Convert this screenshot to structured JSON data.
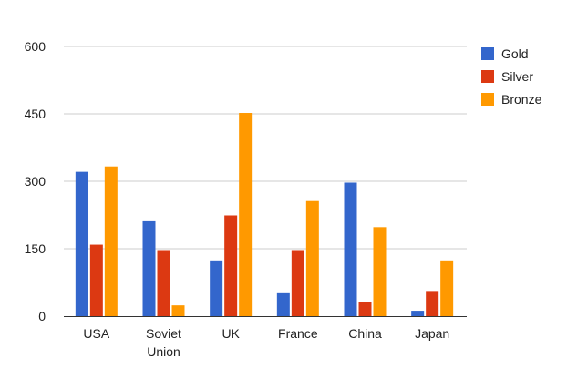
{
  "chart_data": {
    "type": "bar",
    "categories": [
      [
        "USA"
      ],
      [
        "Soviet",
        "Union"
      ],
      [
        "UK"
      ],
      [
        "France"
      ],
      [
        "China"
      ],
      [
        "Japan"
      ]
    ],
    "series": [
      {
        "name": "Gold",
        "color": "#3366cc",
        "values": [
          321,
          211,
          124,
          51,
          297,
          12
        ]
      },
      {
        "name": "Silver",
        "color": "#dc3912",
        "values": [
          159,
          147,
          224,
          147,
          32,
          56
        ]
      },
      {
        "name": "Bronze",
        "color": "#ff9900",
        "values": [
          333,
          24,
          452,
          256,
          198,
          124
        ]
      }
    ],
    "ylim": [
      0,
      600
    ],
    "yticks": [
      0,
      150,
      300,
      450,
      600
    ],
    "grid": true,
    "legend": "right",
    "title": "",
    "xlabel": "",
    "ylabel": ""
  }
}
